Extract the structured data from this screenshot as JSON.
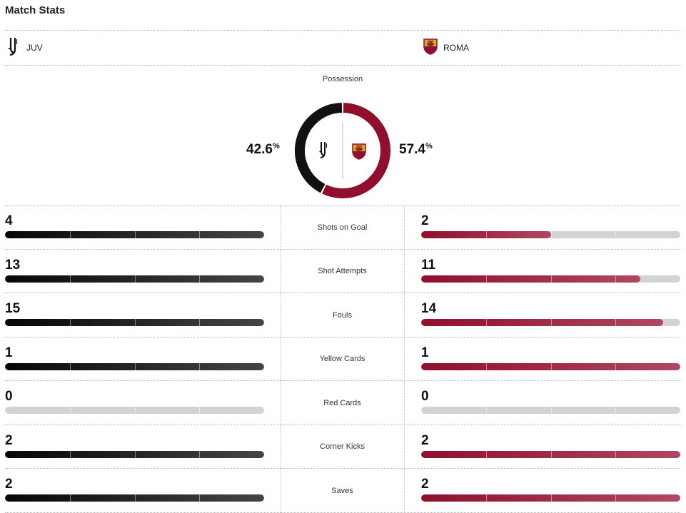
{
  "header": {
    "title": "Match Stats"
  },
  "teams": {
    "home": {
      "name": "JUV",
      "logo_icon": "juventus-logo-icon",
      "color": "#111111"
    },
    "away": {
      "name": "ROMA",
      "logo_icon": "roma-logo-icon",
      "color": "#8f0f2c"
    }
  },
  "possession": {
    "label": "Possession",
    "home_value": "42.6",
    "away_value": "57.4",
    "unit": "%"
  },
  "stats": [
    {
      "label": "Shots on Goal",
      "home": "4",
      "away": "2",
      "home_fill": 1.0,
      "away_fill": 0.5
    },
    {
      "label": "Shot Attempts",
      "home": "13",
      "away": "11",
      "home_fill": 1.0,
      "away_fill": 0.846
    },
    {
      "label": "Fouls",
      "home": "15",
      "away": "14",
      "home_fill": 1.0,
      "away_fill": 0.933
    },
    {
      "label": "Yellow Cards",
      "home": "1",
      "away": "1",
      "home_fill": 1.0,
      "away_fill": 1.0
    },
    {
      "label": "Red Cards",
      "home": "0",
      "away": "0",
      "home_fill": 0.0,
      "away_fill": 0.0
    },
    {
      "label": "Corner Kicks",
      "home": "2",
      "away": "2",
      "home_fill": 1.0,
      "away_fill": 1.0
    },
    {
      "label": "Saves",
      "home": "2",
      "away": "2",
      "home_fill": 1.0,
      "away_fill": 1.0
    }
  ]
}
